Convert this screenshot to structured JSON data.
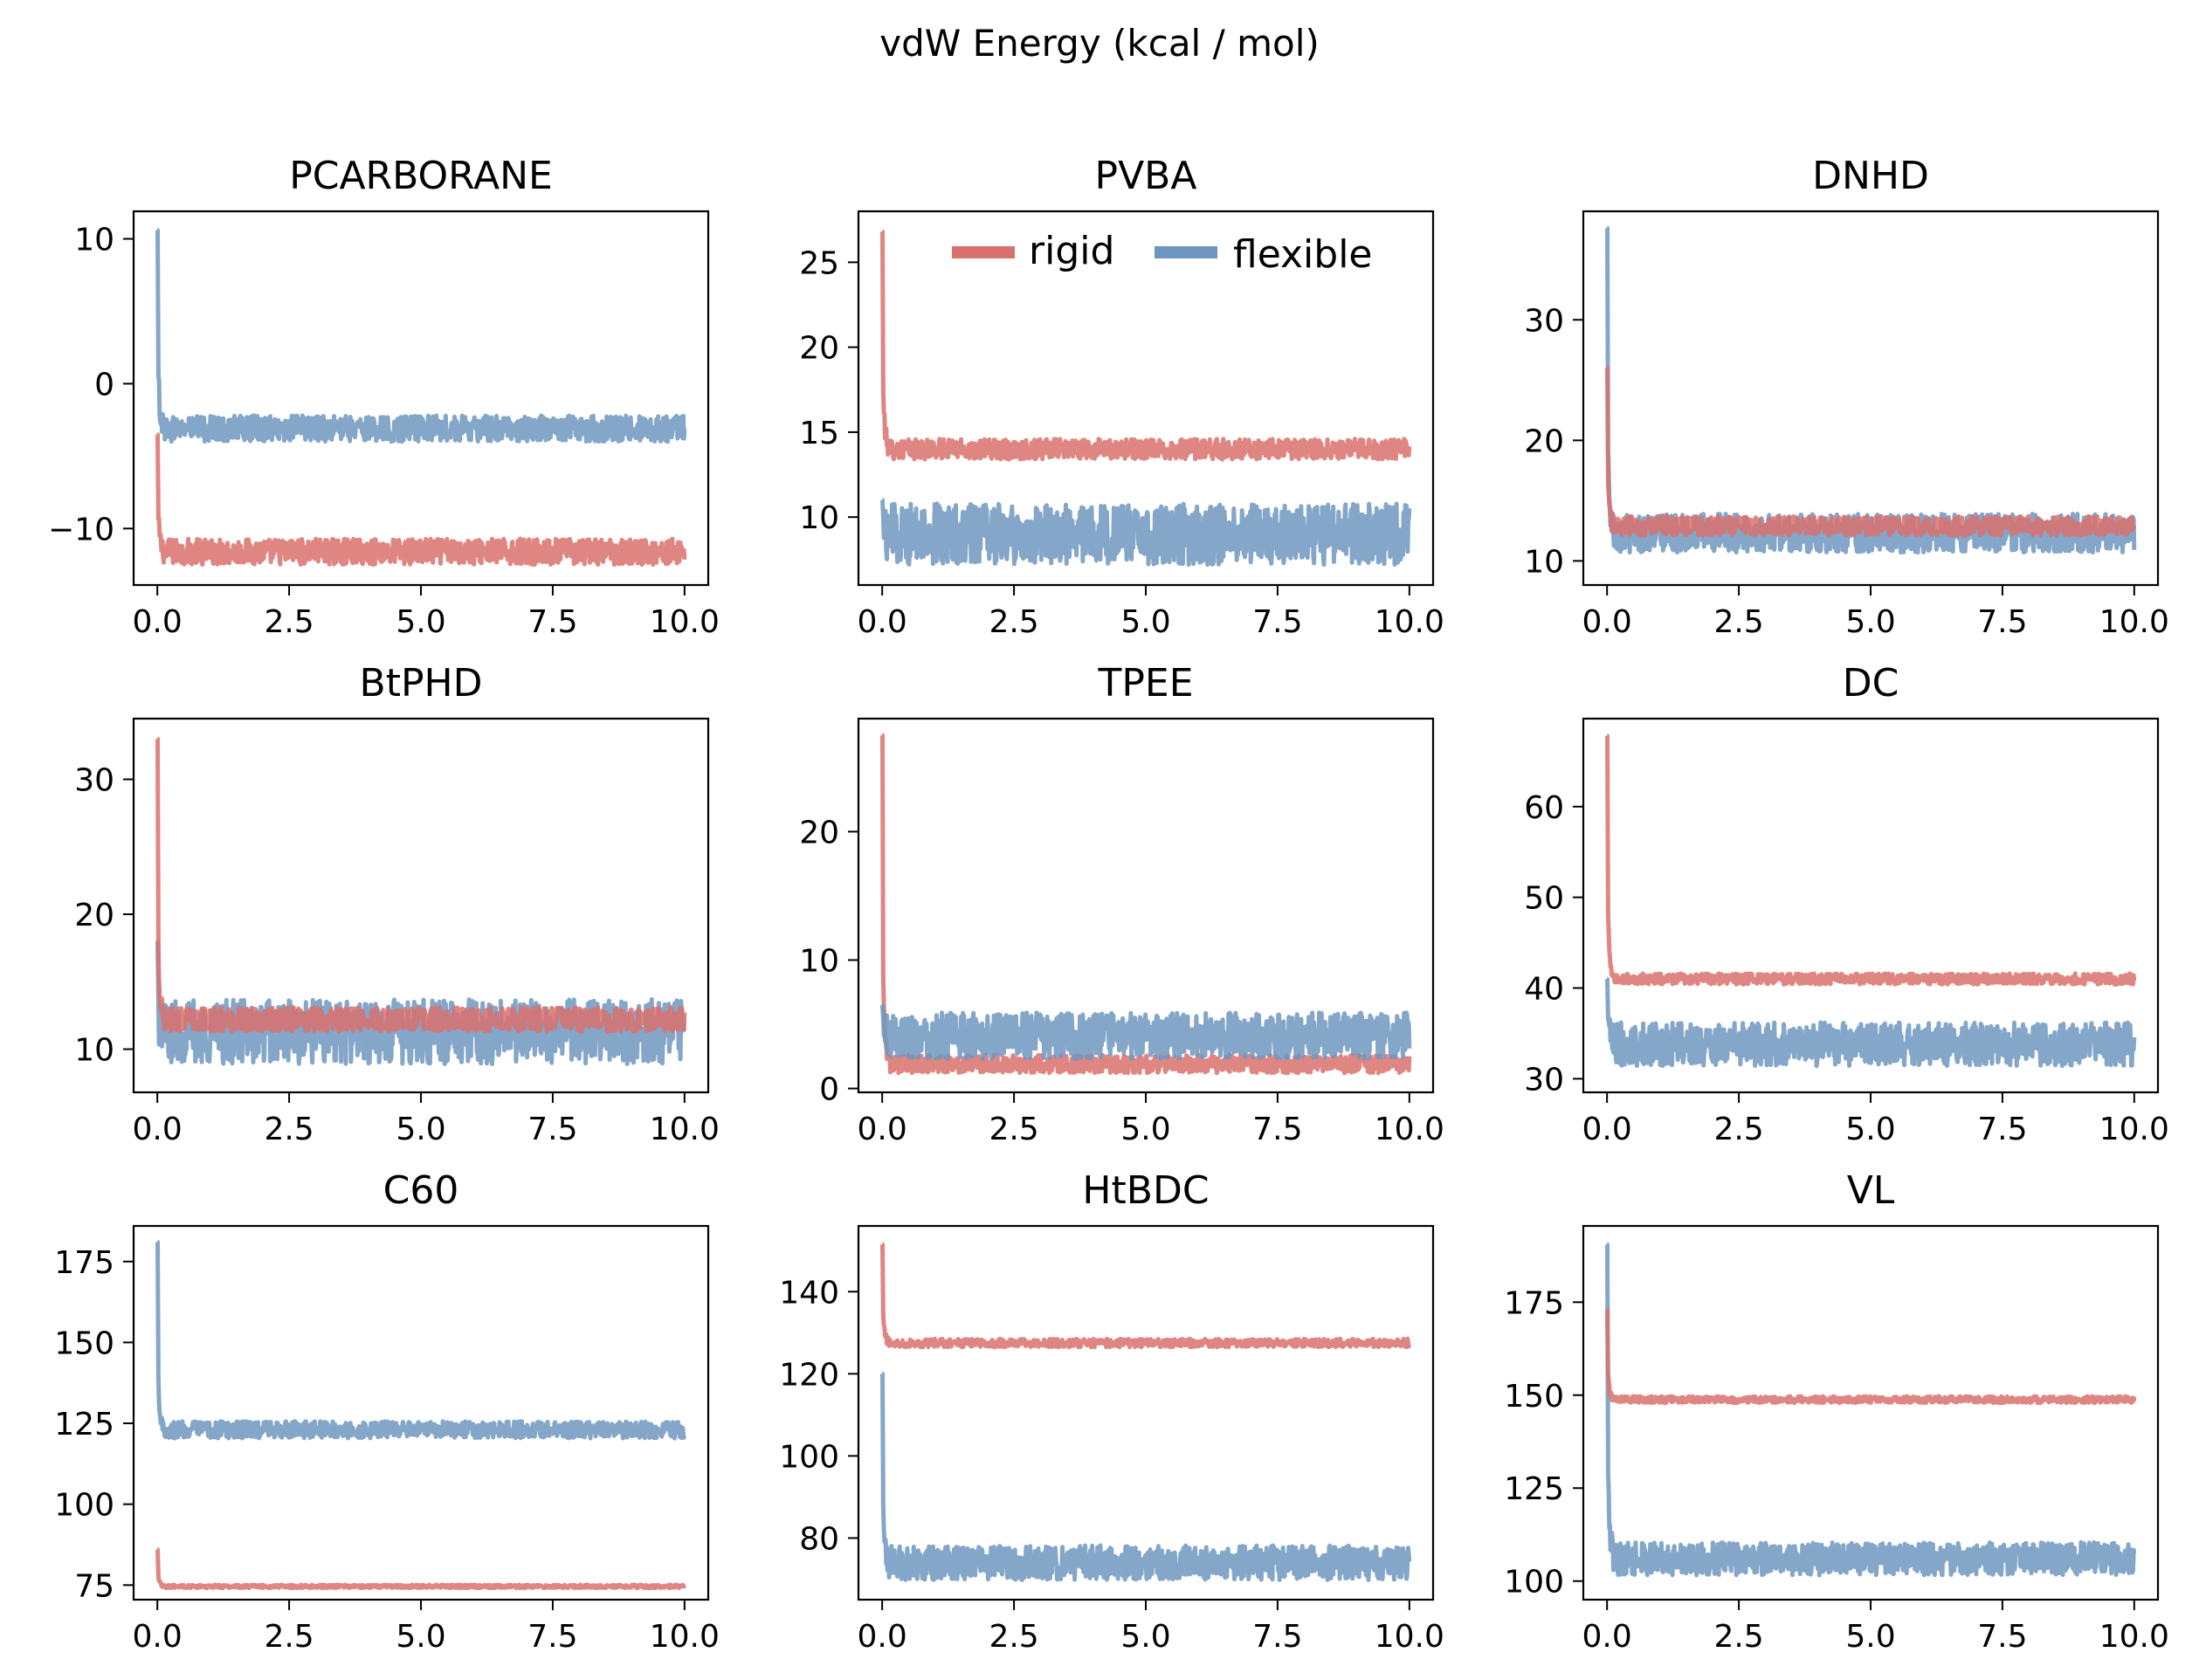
{
  "figure": {
    "title": "vdW Energy (kcal / mol)"
  },
  "legend": {
    "location": "top-right of PVBA panel",
    "entries": [
      {
        "name": "rigid",
        "color": "#d9706c"
      },
      {
        "name": "flexible",
        "color": "#6f96c0"
      }
    ]
  },
  "colors": {
    "rigid": "#d9706c",
    "flexible": "#6f96c0",
    "axis": "#000000"
  },
  "chart_data": [
    {
      "type": "line",
      "title": "PCARBORANE",
      "xlim": [
        -0.45,
        10.45
      ],
      "ylim": [
        -13.9,
        11.9
      ],
      "xticks": [
        "0.0",
        "2.5",
        "5.0",
        "7.5",
        "10.0"
      ],
      "yticks": [
        -10,
        0,
        10
      ],
      "ytick_labels": [
        "−10",
        "0",
        "10"
      ],
      "series": [
        {
          "name": "rigid",
          "spike": -3.5,
          "mean": -11.6,
          "amp": 0.9
        },
        {
          "name": "flexible",
          "spike": 10.6,
          "mean": -3.1,
          "amp": 0.9
        }
      ]
    },
    {
      "type": "line",
      "title": "PVBA",
      "xlim": [
        -0.45,
        10.45
      ],
      "ylim": [
        6,
        28
      ],
      "xticks": [
        "0.0",
        "2.5",
        "5.0",
        "7.5",
        "10.0"
      ],
      "yticks": [
        10,
        15,
        20,
        25
      ],
      "ytick_labels": [
        "10",
        "15",
        "20",
        "25"
      ],
      "series": [
        {
          "name": "rigid",
          "spike": 26.8,
          "mean": 14.0,
          "amp": 0.6
        },
        {
          "name": "flexible",
          "spike": 11.0,
          "mean": 9.0,
          "amp": 1.8
        }
      ]
    },
    {
      "type": "line",
      "title": "DNHD",
      "xlim": [
        -0.45,
        10.45
      ],
      "ylim": [
        8,
        39
      ],
      "xticks": [
        "0.0",
        "2.5",
        "5.0",
        "7.5",
        "10.0"
      ],
      "yticks": [
        10,
        20,
        30
      ],
      "ytick_labels": [
        "10",
        "20",
        "30"
      ],
      "series": [
        {
          "name": "flexible",
          "spike": 37.6,
          "mean": 12.3,
          "amp": 1.6
        },
        {
          "name": "rigid",
          "spike": 26.0,
          "mean": 12.9,
          "amp": 0.8
        }
      ]
    },
    {
      "type": "line",
      "title": "BtPHD",
      "xlim": [
        -0.45,
        10.45
      ],
      "ylim": [
        6.8,
        34.5
      ],
      "xticks": [
        "0.0",
        "2.5",
        "5.0",
        "7.5",
        "10.0"
      ],
      "yticks": [
        10,
        20,
        30
      ],
      "ytick_labels": [
        "10",
        "20",
        "30"
      ],
      "series": [
        {
          "name": "flexible",
          "spike": 18.0,
          "mean": 11.3,
          "amp": 2.4
        },
        {
          "name": "rigid",
          "spike": 33.0,
          "mean": 12.2,
          "amp": 0.9
        }
      ]
    },
    {
      "type": "line",
      "title": "TPEE",
      "xlim": [
        -0.45,
        10.45
      ],
      "ylim": [
        -0.3,
        28.8
      ],
      "xticks": [
        "0.0",
        "2.5",
        "5.0",
        "7.5",
        "10.0"
      ],
      "yticks": [
        0,
        10,
        20
      ],
      "ytick_labels": [
        "0",
        "10",
        "20"
      ],
      "series": [
        {
          "name": "rigid",
          "spike": 27.5,
          "mean": 1.9,
          "amp": 0.7
        },
        {
          "name": "flexible",
          "spike": 6.5,
          "mean": 4.1,
          "amp": 1.8
        }
      ]
    },
    {
      "type": "line",
      "title": "DC",
      "xlim": [
        -0.45,
        10.45
      ],
      "ylim": [
        28.5,
        69.7
      ],
      "xticks": [
        "0.0",
        "2.5",
        "5.0",
        "7.5",
        "10.0"
      ],
      "yticks": [
        30,
        40,
        50,
        60
      ],
      "ytick_labels": [
        "30",
        "40",
        "50",
        "60"
      ],
      "series": [
        {
          "name": "rigid",
          "spike": 67.8,
          "mean": 41.0,
          "amp": 0.6
        },
        {
          "name": "flexible",
          "spike": 41.0,
          "mean": 33.8,
          "amp": 2.4
        }
      ]
    },
    {
      "type": "line",
      "title": "C60",
      "xlim": [
        -0.45,
        10.45
      ],
      "ylim": [
        70.5,
        186
      ],
      "xticks": [
        "0.0",
        "2.5",
        "5.0",
        "7.5",
        "10.0"
      ],
      "yticks": [
        75,
        100,
        125,
        150,
        175
      ],
      "ytick_labels": [
        "75",
        "100",
        "125",
        "150",
        "175"
      ],
      "series": [
        {
          "name": "rigid",
          "spike": 86.0,
          "mean": 74.6,
          "amp": 0.5
        },
        {
          "name": "flexible",
          "spike": 181.0,
          "mean": 123.0,
          "amp": 2.6
        }
      ]
    },
    {
      "type": "line",
      "title": "HtBDC",
      "xlim": [
        -0.45,
        10.45
      ],
      "ylim": [
        65,
        156
      ],
      "xticks": [
        "0.0",
        "2.5",
        "5.0",
        "7.5",
        "10.0"
      ],
      "yticks": [
        80,
        100,
        120,
        140
      ],
      "ytick_labels": [
        "80",
        "100",
        "120",
        "140"
      ],
      "series": [
        {
          "name": "rigid",
          "spike": 151.5,
          "mean": 127.5,
          "amp": 1.0
        },
        {
          "name": "flexible",
          "spike": 120.0,
          "mean": 74.0,
          "amp": 4.2
        }
      ]
    },
    {
      "type": "line",
      "title": "VL",
      "xlim": [
        -0.45,
        10.45
      ],
      "ylim": [
        95,
        195.5
      ],
      "xticks": [
        "0.0",
        "2.5",
        "5.0",
        "7.5",
        "10.0"
      ],
      "yticks": [
        100,
        125,
        150,
        175
      ],
      "ytick_labels": [
        "100",
        "125",
        "150",
        "175"
      ],
      "series": [
        {
          "name": "flexible",
          "spike": 190.5,
          "mean": 106.0,
          "amp": 4.4
        },
        {
          "name": "rigid",
          "spike": 173.0,
          "mean": 148.8,
          "amp": 0.9
        }
      ]
    }
  ]
}
